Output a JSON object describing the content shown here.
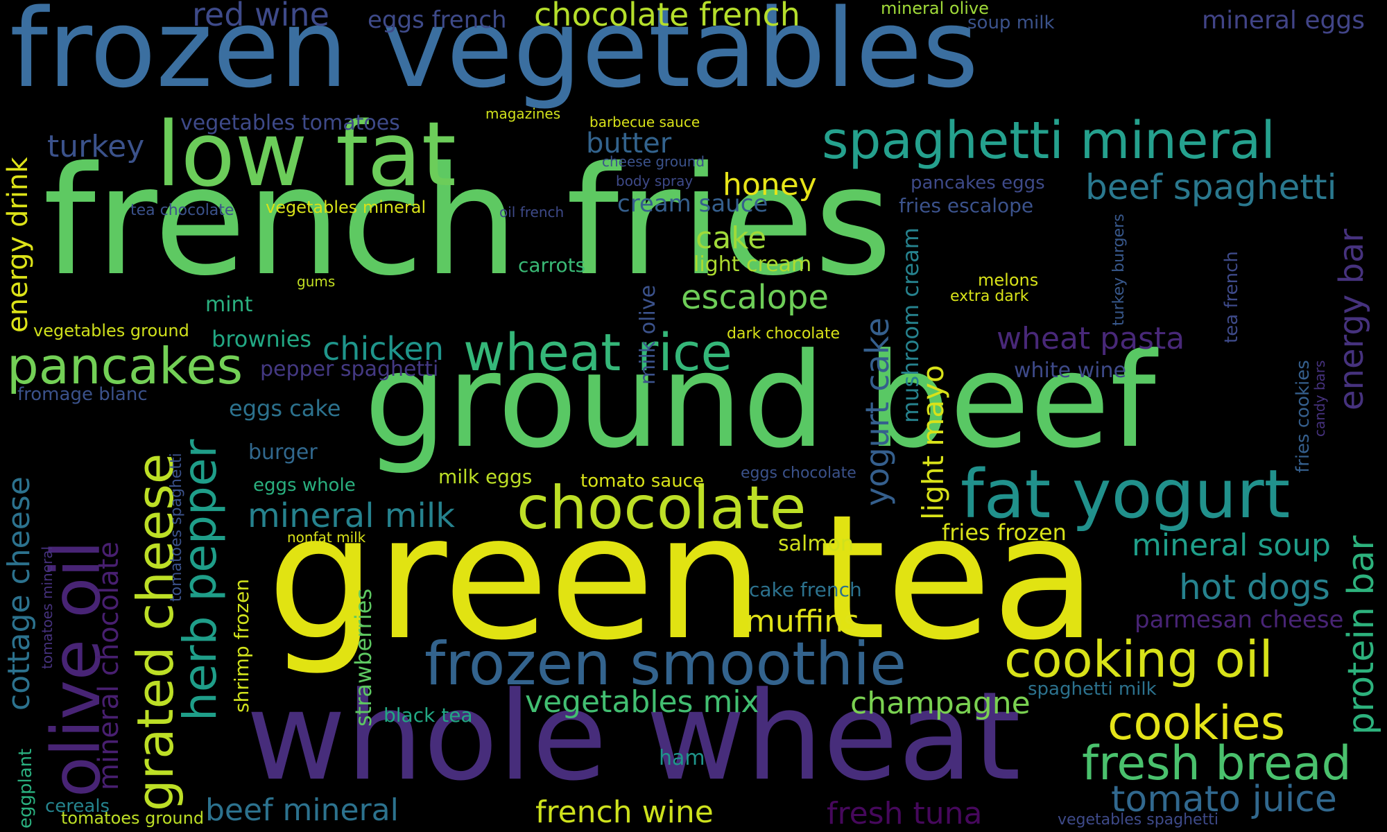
{
  "palette": {
    "background": "#000000"
  },
  "words": [
    {
      "text": "frozen vegetables",
      "color": "#3b6fa0"
    },
    {
      "text": "french fries",
      "color": "#5ec962"
    },
    {
      "text": "green tea",
      "color": "#e1e312"
    },
    {
      "text": "ground beef",
      "color": "#59c864"
    },
    {
      "text": "whole wheat",
      "color": "#472d7b"
    },
    {
      "text": "low fat",
      "color": "#6ccd5a"
    },
    {
      "text": "fat yogurt",
      "color": "#21918c"
    },
    {
      "text": "spaghetti mineral",
      "color": "#25a18e"
    },
    {
      "text": "frozen smoothie",
      "color": "#33638d"
    },
    {
      "text": "chocolate",
      "color": "#bddf26"
    },
    {
      "text": "pancakes",
      "color": "#73d056"
    },
    {
      "text": "wheat rice",
      "color": "#35b779"
    },
    {
      "text": "olive oil",
      "color": "#482475"
    },
    {
      "text": "grated cheese",
      "color": "#bddf26"
    },
    {
      "text": "herb pepper",
      "color": "#1f9e89"
    },
    {
      "text": "cooking oil",
      "color": "#d8e219"
    },
    {
      "text": "cookies",
      "color": "#e5e419"
    },
    {
      "text": "fresh bread",
      "color": "#4ac16d"
    },
    {
      "text": "tomato juice",
      "color": "#31688e"
    },
    {
      "text": "hot dogs",
      "color": "#26828e"
    },
    {
      "text": "mineral soup",
      "color": "#1f9e89"
    },
    {
      "text": "protein bar",
      "color": "#2db27d"
    },
    {
      "text": "energy bar",
      "color": "#46327e"
    },
    {
      "text": "beef spaghetti",
      "color": "#2a788e"
    },
    {
      "text": "red wine",
      "color": "#3e4a89"
    },
    {
      "text": "chocolate french",
      "color": "#b5de2b"
    },
    {
      "text": "eggs french",
      "color": "#3e4a89"
    },
    {
      "text": "mineral eggs",
      "color": "#414487"
    },
    {
      "text": "mineral olive",
      "color": "#a0da39"
    },
    {
      "text": "soup milk",
      "color": "#3b528b"
    },
    {
      "text": "turkey",
      "color": "#3b528b"
    },
    {
      "text": "vegetables tomatoes",
      "color": "#3e4a89"
    },
    {
      "text": "magazines",
      "color": "#d0e11c"
    },
    {
      "text": "barbecue sauce",
      "color": "#d8e219"
    },
    {
      "text": "butter",
      "color": "#33638d"
    },
    {
      "text": "cheese ground",
      "color": "#3b528b"
    },
    {
      "text": "body spray",
      "color": "#3e4a89"
    },
    {
      "text": "honey",
      "color": "#e7e419"
    },
    {
      "text": "cream sauce",
      "color": "#355f8d"
    },
    {
      "text": "tea chocolate",
      "color": "#3b528b"
    },
    {
      "text": "vegetables mineral",
      "color": "#d8e219"
    },
    {
      "text": "oil french",
      "color": "#3e4a89"
    },
    {
      "text": "pancakes eggs",
      "color": "#3e4a89"
    },
    {
      "text": "fries escalope",
      "color": "#3b528b"
    },
    {
      "text": "energy drink",
      "color": "#dde318"
    },
    {
      "text": "cake",
      "color": "#a0da39"
    },
    {
      "text": "carrots",
      "color": "#3aba76"
    },
    {
      "text": "light cream",
      "color": "#addc30"
    },
    {
      "text": "gums",
      "color": "#c2df23"
    },
    {
      "text": "mint",
      "color": "#2ab07f"
    },
    {
      "text": "escalope",
      "color": "#6ece58"
    },
    {
      "text": "melons",
      "color": "#d8e219"
    },
    {
      "text": "extra dark",
      "color": "#d8e219"
    },
    {
      "text": "vegetables ground",
      "color": "#d0e11c"
    },
    {
      "text": "brownies",
      "color": "#22a884"
    },
    {
      "text": "chicken",
      "color": "#1f958b"
    },
    {
      "text": "dark chocolate",
      "color": "#d8e219"
    },
    {
      "text": "wheat pasta",
      "color": "#482878"
    },
    {
      "text": "pepper spaghetti",
      "color": "#443983"
    },
    {
      "text": "white wine",
      "color": "#3e4a89"
    },
    {
      "text": "fromage blanc",
      "color": "#3b528b"
    },
    {
      "text": "eggs cake",
      "color": "#2c728e"
    },
    {
      "text": "burger",
      "color": "#31688e"
    },
    {
      "text": "eggs whole",
      "color": "#2ab07f"
    },
    {
      "text": "milk eggs",
      "color": "#bddf26"
    },
    {
      "text": "tomato sauce",
      "color": "#d8e219"
    },
    {
      "text": "eggs chocolate",
      "color": "#3b528b"
    },
    {
      "text": "mineral milk",
      "color": "#26828e"
    },
    {
      "text": "nonfat milk",
      "color": "#d8e219"
    },
    {
      "text": "salmon",
      "color": "#d0e11c"
    },
    {
      "text": "fries frozen",
      "color": "#d8e219"
    },
    {
      "text": "cake french",
      "color": "#2c728e"
    },
    {
      "text": "muffins",
      "color": "#e0e318"
    },
    {
      "text": "parmesan cheese",
      "color": "#482475"
    },
    {
      "text": "spaghetti milk",
      "color": "#2c728e"
    },
    {
      "text": "vegetables mix",
      "color": "#42be71"
    },
    {
      "text": "champagne",
      "color": "#7ad151"
    },
    {
      "text": "black tea",
      "color": "#22a884"
    },
    {
      "text": "ham",
      "color": "#1f958b"
    },
    {
      "text": "beef mineral",
      "color": "#2c728e"
    },
    {
      "text": "french wine",
      "color": "#cde11d"
    },
    {
      "text": "fresh tuna",
      "color": "#46085c"
    },
    {
      "text": "vegetables spaghetti",
      "color": "#3e4a89"
    },
    {
      "text": "cereals",
      "color": "#25848e"
    },
    {
      "text": "tomatoes ground",
      "color": "#bddf26"
    },
    {
      "text": "cottage cheese",
      "color": "#2c728e"
    },
    {
      "text": "mineral chocolate",
      "color": "#481f70"
    },
    {
      "text": "tomatoes mineral",
      "color": "#46327e"
    },
    {
      "text": "tomatoes spaghetti",
      "color": "#3b528b"
    },
    {
      "text": "shrimp frozen",
      "color": "#d0e11c"
    },
    {
      "text": "strawberries",
      "color": "#5ec962"
    },
    {
      "text": "eggplant",
      "color": "#2ab07f"
    },
    {
      "text": "milk olive",
      "color": "#3b528b"
    },
    {
      "text": "yogurt cake",
      "color": "#355f8d"
    },
    {
      "text": "mushroom cream",
      "color": "#26828e"
    },
    {
      "text": "light mayo",
      "color": "#d8e219"
    },
    {
      "text": "turkey burgers",
      "color": "#38588c"
    },
    {
      "text": "tea french",
      "color": "#3e4a89"
    },
    {
      "text": "fries cookies",
      "color": "#355f8d"
    },
    {
      "text": "candy bars",
      "color": "#46327e"
    }
  ]
}
